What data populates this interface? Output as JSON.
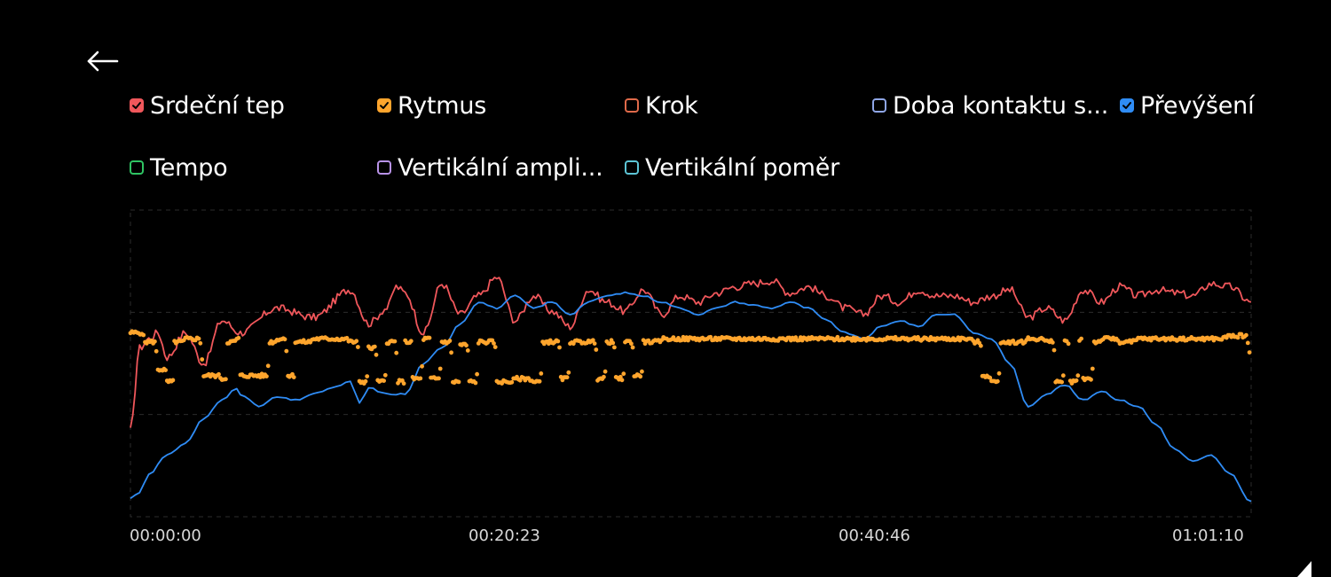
{
  "header": {
    "back_icon": "arrow-left-icon"
  },
  "legend": [
    {
      "label": "Srdeční tep",
      "color": "#f0575b",
      "checked": true
    },
    {
      "label": "Rytmus",
      "color": "#ffa52d",
      "checked": true
    },
    {
      "label": "Krok",
      "color": "#e06a4a",
      "checked": false
    },
    {
      "label": "Doba kontaktu s...",
      "color": "#8fa6e6",
      "checked": false
    },
    {
      "label": "Převýšení",
      "color": "#2f8cf5",
      "checked": true
    },
    {
      "label": "Tempo",
      "color": "#2fc463",
      "checked": false
    },
    {
      "label": "Vertikální ampli...",
      "color": "#b892e8",
      "checked": false
    },
    {
      "label": "Vertikální poměr",
      "color": "#5dc5d6",
      "checked": false
    }
  ],
  "chart_data": {
    "type": "line",
    "x_unit": "time",
    "x_range": [
      "00:00:00",
      "01:01:10"
    ],
    "x_ticks": [
      "00:00:00",
      "00:20:23",
      "00:40:46",
      "01:01:10"
    ],
    "y_normalized_range": [
      0,
      100
    ],
    "grid": true,
    "series": [
      {
        "name": "Srdeční tep",
        "color": "#f0575b",
        "style": "line",
        "x_min": [
          0,
          0.5,
          1,
          1.5,
          2,
          3,
          4,
          5,
          6,
          8,
          10,
          12,
          13,
          14,
          14.5,
          15,
          16,
          17,
          18,
          19,
          20,
          21,
          22,
          23,
          24,
          25,
          26,
          27,
          28,
          29,
          30,
          31,
          32,
          33,
          34,
          35,
          36,
          37,
          38,
          39,
          40,
          41,
          42,
          43,
          44,
          45,
          46,
          47,
          48,
          49,
          50,
          51,
          52,
          53,
          54,
          55,
          56,
          57,
          58,
          59,
          60,
          61.17
        ],
        "y": [
          28,
          55,
          58,
          60,
          52,
          60,
          50,
          64,
          60,
          68,
          65,
          74,
          63,
          68,
          75,
          73,
          60,
          76,
          66,
          72,
          78,
          64,
          72,
          67,
          62,
          74,
          70,
          67,
          74,
          66,
          72,
          70,
          73,
          75,
          76,
          77,
          73,
          75,
          72,
          68,
          66,
          72,
          70,
          74,
          72,
          72,
          70,
          72,
          74,
          65,
          68,
          64,
          74,
          70,
          75,
          72,
          74,
          73,
          72,
          76,
          75,
          70
        ]
      },
      {
        "name": "Rytmus",
        "color": "#ffa52d",
        "style": "dots",
        "x_min": [
          0,
          0.8,
          1.5,
          2,
          2.4,
          3,
          4,
          5,
          5.3,
          5.8,
          6,
          7,
          7.6,
          8,
          8.6,
          9,
          10,
          11,
          12,
          12.5,
          13,
          13.5,
          14,
          14.6,
          15,
          15.4,
          16,
          16.4,
          17,
          17.6,
          18,
          18.5,
          19,
          19.5,
          20,
          21,
          22,
          22.5,
          23,
          23.5,
          24,
          25,
          25.5,
          26,
          26.5,
          27,
          27.5,
          28,
          29,
          30,
          35,
          40,
          45,
          46,
          46.5,
          47,
          47.5,
          48,
          49,
          50,
          50.5,
          51,
          51.3,
          51.8,
          52,
          52.6,
          53,
          54,
          55,
          58,
          60,
          61.17
        ],
        "y": [
          60,
          57,
          48,
          44,
          57,
          58,
          46,
          45,
          57,
          58,
          46,
          46,
          57,
          58,
          46,
          57,
          58,
          58,
          57,
          44,
          55,
          44,
          57,
          44,
          57,
          45,
          58,
          45,
          57,
          44,
          56,
          44,
          57,
          57,
          44,
          45,
          44,
          57,
          57,
          45,
          57,
          57,
          45,
          57,
          45,
          57,
          46,
          57,
          58,
          58,
          58,
          58,
          58,
          57,
          46,
          44,
          57,
          57,
          58,
          57,
          44,
          57,
          44,
          58,
          45,
          57,
          58,
          57,
          58,
          58,
          59,
          50
        ]
      },
      {
        "name": "Převýšení",
        "color": "#2f8cf5",
        "style": "line",
        "x_min": [
          0,
          0.5,
          1,
          2,
          3,
          4,
          5,
          5.8,
          6,
          7,
          8,
          9,
          10,
          11,
          12,
          12.5,
          13,
          14,
          15,
          16,
          17,
          18,
          19,
          20,
          21,
          22,
          23,
          24,
          25,
          26,
          27,
          28,
          29,
          30,
          31,
          32,
          33,
          34,
          35,
          36,
          37,
          38,
          39,
          40,
          41,
          42,
          43,
          44,
          45,
          46,
          47,
          48,
          49,
          50,
          51,
          52,
          53,
          54,
          55,
          56,
          57,
          58,
          59,
          60,
          61.17
        ],
        "y": [
          6,
          8,
          14,
          20,
          24,
          32,
          38,
          42,
          40,
          36,
          39,
          38,
          40,
          42,
          44,
          37,
          42,
          40,
          40,
          50,
          55,
          63,
          70,
          68,
          72,
          68,
          70,
          66,
          70,
          72,
          73,
          72,
          70,
          68,
          66,
          68,
          70,
          69,
          68,
          70,
          68,
          64,
          60,
          58,
          62,
          64,
          62,
          66,
          66,
          60,
          58,
          50,
          36,
          40,
          43,
          38,
          41,
          38,
          36,
          30,
          22,
          18,
          20,
          14,
          5
        ]
      }
    ]
  }
}
